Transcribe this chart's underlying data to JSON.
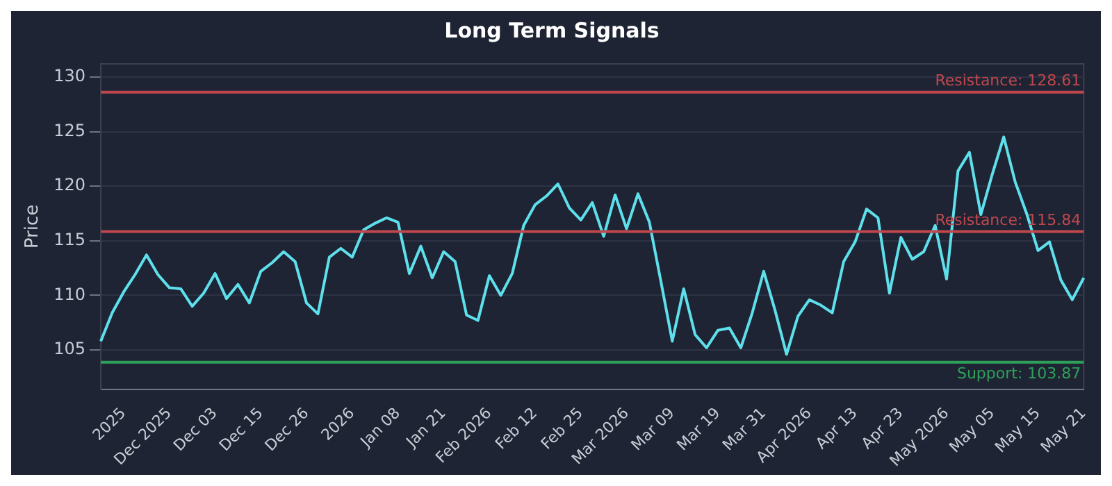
{
  "chart_data": {
    "type": "line",
    "title": "Long Term Signals",
    "ylabel": "Price",
    "categories": [
      null,
      null,
      "2025",
      null,
      null,
      null,
      "Dec 2025",
      null,
      null,
      null,
      "Dec 03",
      null,
      null,
      null,
      "Dec 15",
      null,
      null,
      null,
      "Dec 26",
      null,
      null,
      null,
      "2026",
      null,
      null,
      null,
      "Jan 08",
      null,
      null,
      null,
      "Jan 21",
      null,
      null,
      null,
      "Feb 2026",
      null,
      null,
      null,
      "Feb 12",
      null,
      null,
      null,
      "Feb 25",
      null,
      null,
      null,
      "Mar 2026",
      null,
      null,
      null,
      "Mar 09",
      null,
      null,
      null,
      "Mar 19",
      null,
      null,
      null,
      "Mar 31",
      null,
      null,
      null,
      "Apr 2026",
      null,
      null,
      null,
      "Apr 13",
      null,
      null,
      null,
      "Apr 23",
      null,
      null,
      null,
      "May 2026",
      null,
      null,
      null,
      "May 05",
      null,
      null,
      null,
      "May 15",
      null,
      null,
      null,
      "May 21"
    ],
    "series": [
      {
        "color": "#5ee0ec",
        "values": [
          105.8,
          108.4,
          110.3,
          111.9,
          113.7,
          111.9,
          110.7,
          110.6,
          109,
          110.2,
          112,
          109.7,
          111,
          109.3,
          112.2,
          113,
          114,
          113.1,
          109.3,
          108.3,
          113.5,
          114.3,
          113.5,
          116,
          116.6,
          117.1,
          116.7,
          112,
          114.5,
          111.6,
          114,
          113.1,
          108.2,
          107.7,
          111.8,
          110,
          112,
          116.4,
          118.3,
          119.1,
          120.2,
          118,
          116.9,
          118.5,
          115.4,
          119.2,
          116.1,
          119.3,
          116.7,
          111.3,
          105.8,
          110.6,
          106.4,
          105.2,
          106.8,
          107,
          105.2,
          108.4,
          112.2,
          108.6,
          104.6,
          108.1,
          109.6,
          109.1,
          108.4,
          113.1,
          114.9,
          117.9,
          117.1,
          110.2,
          115.3,
          113.3,
          114,
          116.4,
          111.5,
          121.4,
          123.1,
          117.4,
          121.1,
          124.5,
          120.4,
          117.5,
          114.1,
          114.9,
          111.4,
          109.6,
          111.6
        ]
      }
    ],
    "ylim": [
      101.4,
      131.2
    ],
    "yticks": [
      105,
      110,
      115,
      120,
      125,
      130
    ],
    "grid": "y",
    "legend": false,
    "marker": "none",
    "line_style": "solid",
    "ref_lines": [
      {
        "axis": "y",
        "value": 128.61,
        "label": "Resistance: 128.61",
        "color": "#c0474d"
      },
      {
        "axis": "y",
        "value": 115.84,
        "label": "Resistance: 115.84",
        "color": "#c0474d"
      },
      {
        "axis": "y",
        "value": 103.87,
        "label": "Support: 103.87",
        "color": "#2ea05a"
      }
    ]
  }
}
